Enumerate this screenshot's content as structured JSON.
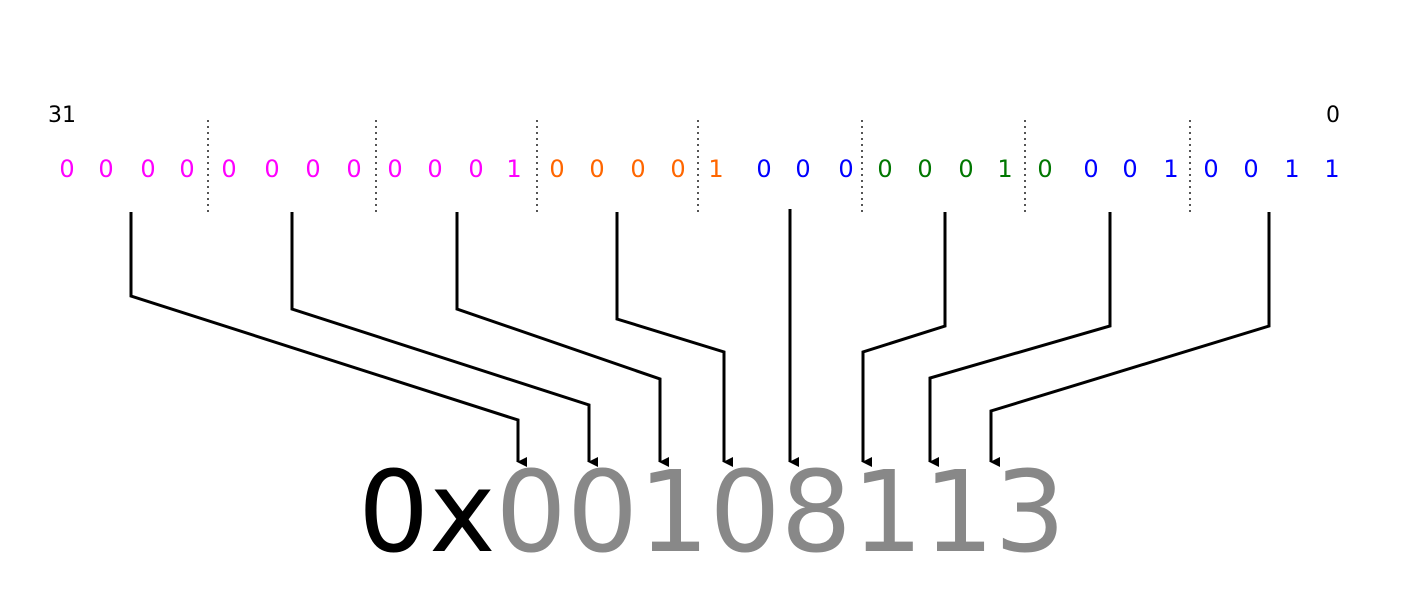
{
  "bit_index_high": "31",
  "bit_index_low": "0",
  "colors": {
    "magenta": "#ff00ff",
    "orange": "#ff6600",
    "blue": "#0000ff",
    "green": "#007700",
    "prefix": "#000000",
    "hex_digits": "#888888",
    "arrows": "#000000",
    "separators": "#555555"
  },
  "bits": [
    {
      "v": "0",
      "c": "magenta"
    },
    {
      "v": "0",
      "c": "magenta"
    },
    {
      "v": "0",
      "c": "magenta"
    },
    {
      "v": "0",
      "c": "magenta"
    },
    {
      "v": "0",
      "c": "magenta"
    },
    {
      "v": "0",
      "c": "magenta"
    },
    {
      "v": "0",
      "c": "magenta"
    },
    {
      "v": "0",
      "c": "magenta"
    },
    {
      "v": "0",
      "c": "magenta"
    },
    {
      "v": "0",
      "c": "magenta"
    },
    {
      "v": "0",
      "c": "magenta"
    },
    {
      "v": "1",
      "c": "magenta"
    },
    {
      "v": "0",
      "c": "orange"
    },
    {
      "v": "0",
      "c": "orange"
    },
    {
      "v": "0",
      "c": "orange"
    },
    {
      "v": "0",
      "c": "orange"
    },
    {
      "v": "1",
      "c": "orange"
    },
    {
      "v": "0",
      "c": "blue"
    },
    {
      "v": "0",
      "c": "blue"
    },
    {
      "v": "0",
      "c": "blue"
    },
    {
      "v": "0",
      "c": "green"
    },
    {
      "v": "0",
      "c": "green"
    },
    {
      "v": "0",
      "c": "green"
    },
    {
      "v": "1",
      "c": "green"
    },
    {
      "v": "0",
      "c": "green"
    },
    {
      "v": "0",
      "c": "blue"
    },
    {
      "v": "0",
      "c": "blue"
    },
    {
      "v": "1",
      "c": "blue"
    },
    {
      "v": "0",
      "c": "blue"
    },
    {
      "v": "0",
      "c": "blue"
    },
    {
      "v": "1",
      "c": "blue"
    },
    {
      "v": "1",
      "c": "blue"
    }
  ],
  "hex_prefix": "0x",
  "hex_digits": [
    "0",
    "0",
    "1",
    "0",
    "8",
    "1",
    "1",
    "3"
  ]
}
